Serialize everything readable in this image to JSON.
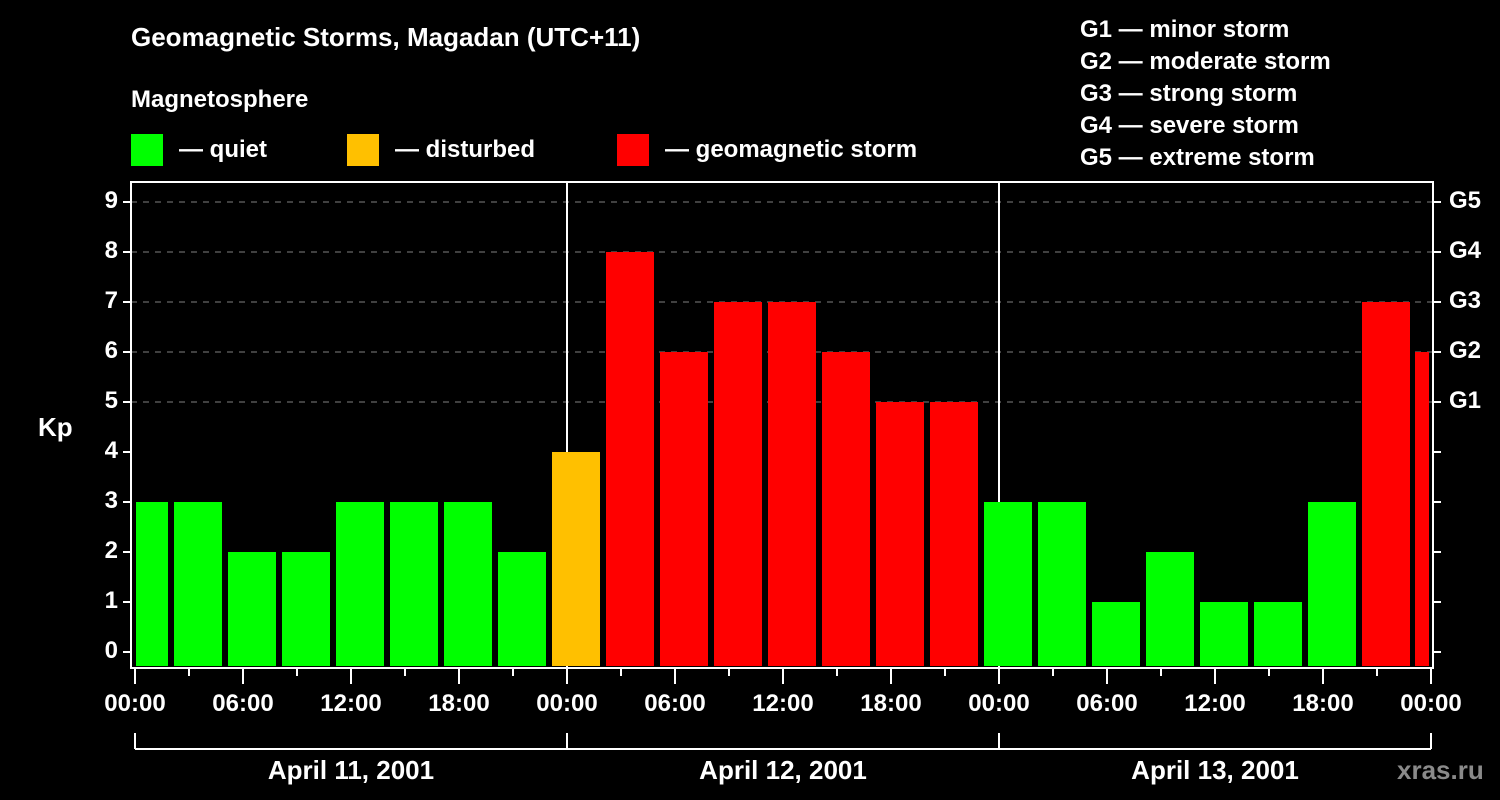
{
  "header": {
    "title": "Geomagnetic Storms, Magadan (UTC+11)",
    "subtitle": "Magnetosphere"
  },
  "legend": [
    {
      "label": "— quiet",
      "color": "#00ff00"
    },
    {
      "label": "— disturbed",
      "color": "#ffc000"
    },
    {
      "label": "— geomagnetic storm",
      "color": "#ff0000"
    }
  ],
  "storm_scale": [
    "G1 — minor storm",
    "G2 — moderate storm",
    "G3 — strong storm",
    "G4 — severe storm",
    "G5 — extreme storm"
  ],
  "axes": {
    "ylabel": "Kp",
    "y_ticks": [
      "0",
      "1",
      "2",
      "3",
      "4",
      "5",
      "6",
      "7",
      "8",
      "9"
    ],
    "g_ticks": [
      "G1",
      "G2",
      "G3",
      "G4",
      "G5"
    ],
    "x_ticks": [
      "00:00",
      "06:00",
      "12:00",
      "18:00",
      "00:00",
      "06:00",
      "12:00",
      "18:00",
      "00:00",
      "06:00",
      "12:00",
      "18:00",
      "00:00"
    ],
    "dates": [
      "April 11, 2001",
      "April 12, 2001",
      "April 13, 2001"
    ]
  },
  "watermark": "xras.ru",
  "colors": {
    "quiet": "#00ff00",
    "disturbed": "#ffc000",
    "storm": "#ff0000",
    "grid": "#808080"
  },
  "chart_data": {
    "type": "bar",
    "title": "Geomagnetic Storms, Magadan (UTC+11)",
    "subtitle": "Magnetosphere",
    "xlabel": "",
    "ylabel": "Kp",
    "ylim": [
      0,
      9
    ],
    "grid": "dashed horizontal at Kp 5-9",
    "secondary_y": {
      "5": "G1",
      "6": "G2",
      "7": "G3",
      "8": "G4",
      "9": "G5"
    },
    "categories": [
      "Apr 11 00:00",
      "Apr 11 03:00",
      "Apr 11 06:00",
      "Apr 11 09:00",
      "Apr 11 12:00",
      "Apr 11 15:00",
      "Apr 11 18:00",
      "Apr 11 21:00",
      "Apr 12 00:00",
      "Apr 12 03:00",
      "Apr 12 06:00",
      "Apr 12 09:00",
      "Apr 12 12:00",
      "Apr 12 15:00",
      "Apr 12 18:00",
      "Apr 12 21:00",
      "Apr 13 00:00",
      "Apr 13 03:00",
      "Apr 13 06:00",
      "Apr 13 09:00",
      "Apr 13 12:00",
      "Apr 13 15:00",
      "Apr 13 18:00",
      "Apr 13 21:00",
      "Apr 14 00:00"
    ],
    "values": [
      3,
      3,
      2,
      2,
      3,
      3,
      3,
      2,
      4,
      8,
      6,
      7,
      7,
      6,
      5,
      5,
      3,
      3,
      1,
      2,
      1,
      1,
      3,
      7,
      6
    ],
    "status": [
      "quiet",
      "quiet",
      "quiet",
      "quiet",
      "quiet",
      "quiet",
      "quiet",
      "quiet",
      "disturbed",
      "storm",
      "storm",
      "storm",
      "storm",
      "storm",
      "storm",
      "storm",
      "quiet",
      "quiet",
      "quiet",
      "quiet",
      "quiet",
      "quiet",
      "quiet",
      "storm",
      "storm"
    ],
    "legend": [
      "quiet",
      "disturbed",
      "geomagnetic storm"
    ],
    "legend_position": "top"
  }
}
